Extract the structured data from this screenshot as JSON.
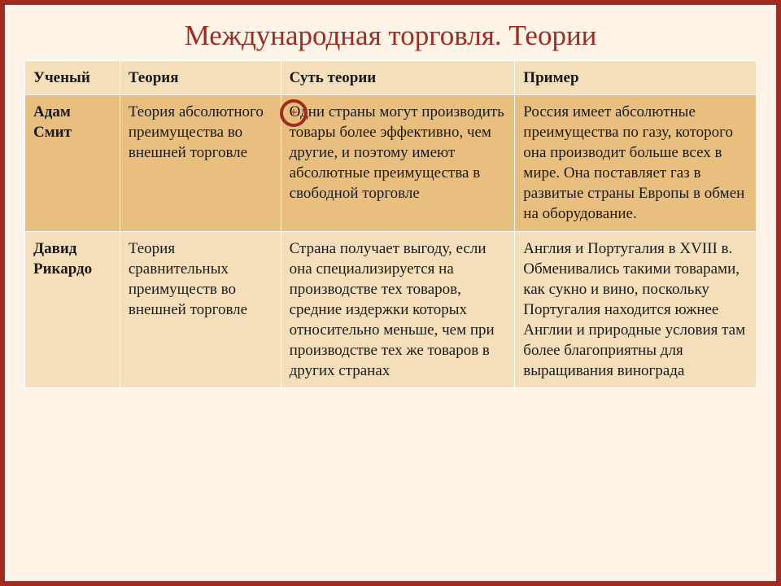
{
  "title": "Международная торговля. Теории",
  "columns": [
    "Ученый",
    "Теория",
    "Суть теории",
    "Пример"
  ],
  "rows": [
    {
      "scientist": "Адам Смит",
      "theory": "Теория абсолютного преимущества во внешней торговле",
      "essence": "Одни страны могут производить товары более эффективно, чем другие, и поэтому имеют абсолютные преимущества в свободной торговле",
      "example": "Россия имеет абсолютные преимущества по газу, которого она производит больше всех в мире. Она поставляет газ в развитые страны Европы в обмен на оборудование."
    },
    {
      "scientist": "Давид Рикардо",
      "theory": "Теория сравнительных преимуществ во внешней торговле",
      "essence": "Страна получает выгоду, если она специализируется на производстве тех товаров, средние издержки которых относительно меньше, чем при производстве тех же товаров в других странах",
      "example": "Англия и Португалия в XVIII в. Обменивались такими товарами, как сукно и вино, поскольку Португалия находится южнее Англии и природные условия там более благоприятны для выращивания винограда"
    }
  ],
  "colors": {
    "header_bg": "#f4dfba",
    "row0_bg": "#e9bf80",
    "row1_bg": "#f4dfba",
    "border": "#a02b22",
    "slide_bg": "#fdf3e7",
    "text": "#1a1a1a"
  }
}
